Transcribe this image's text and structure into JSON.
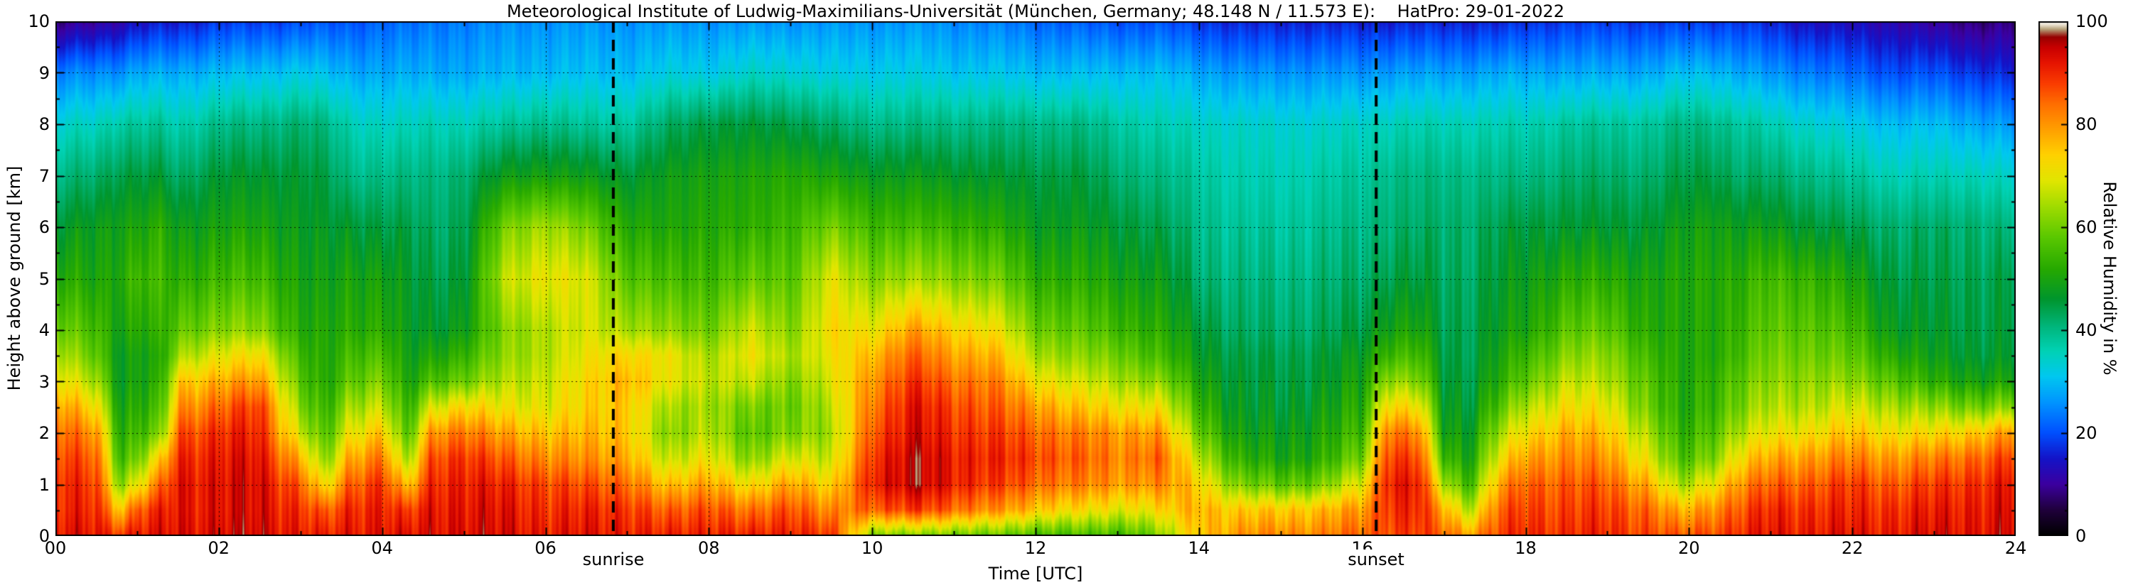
{
  "title": "Meteorological Institute of Ludwig-Maximilians-Universität (München, Germany; 48.148 N / 11.573 E):    HatPro: 29-01-2022",
  "axes": {
    "x_label": "Time [UTC]",
    "y_label": "Height above ground [km]",
    "x_ticks": [
      "00",
      "02",
      "04",
      "06",
      "08",
      "10",
      "12",
      "14",
      "16",
      "18",
      "20",
      "22",
      "24"
    ],
    "y_ticks": [
      "0",
      "1",
      "2",
      "3",
      "4",
      "5",
      "6",
      "7",
      "8",
      "9",
      "10"
    ],
    "colorbar_ticks": [
      "0",
      "20",
      "40",
      "60",
      "80",
      "100"
    ]
  },
  "chart_data": {
    "type": "heatmap",
    "title": "Meteorological Institute of Ludwig-Maximilians-Universität (München, Germany; 48.148 N / 11.573 E):    HatPro: 29-01-2022",
    "xlabel": "Time [UTC]",
    "ylabel": "Height above ground [km]",
    "xlim": [
      0,
      24
    ],
    "ylim": [
      0,
      10
    ],
    "grid": true,
    "colorbar": {
      "label": "Relative Humidity in %",
      "min": 0,
      "max": 100
    },
    "annotations": [
      {
        "label": "sunrise",
        "time_utc": 6.83
      },
      {
        "label": "sunset",
        "time_utc": 16.17
      }
    ],
    "colormap_stops": [
      [
        0,
        "#000000"
      ],
      [
        5,
        "#20003c"
      ],
      [
        10,
        "#3c00a0"
      ],
      [
        15,
        "#1414c8"
      ],
      [
        20,
        "#0050ff"
      ],
      [
        26,
        "#0096ff"
      ],
      [
        31,
        "#00c8f0"
      ],
      [
        36,
        "#00d2b4"
      ],
      [
        41,
        "#00b478"
      ],
      [
        46,
        "#00962e"
      ],
      [
        52,
        "#28aa00"
      ],
      [
        58,
        "#5ac800"
      ],
      [
        64,
        "#a0dc00"
      ],
      [
        69,
        "#e1e600"
      ],
      [
        74,
        "#ffd200"
      ],
      [
        79,
        "#ffa000"
      ],
      [
        84,
        "#ff6e00"
      ],
      [
        88,
        "#fa3c00"
      ],
      [
        92,
        "#e61400"
      ],
      [
        95,
        "#c80000"
      ],
      [
        97,
        "#960000"
      ],
      [
        98.5,
        "#b4a078"
      ],
      [
        99.3,
        "#e6dcc8"
      ],
      [
        100,
        "#ffffff"
      ]
    ],
    "heights": [
      0,
      0.5,
      1,
      1.5,
      2,
      2.5,
      3,
      3.5,
      4,
      5,
      6,
      7,
      8,
      9,
      10
    ],
    "times": [
      0,
      0.5,
      0.8,
      1,
      1.3,
      1.5,
      2,
      2.5,
      3,
      3.3,
      3.6,
      4,
      4.3,
      4.6,
      5,
      5.5,
      6,
      6.5,
      7,
      7.5,
      8,
      8.5,
      9,
      9.5,
      10,
      10.5,
      11,
      11.5,
      12,
      12.5,
      13,
      13.5,
      14,
      14.5,
      15,
      15.5,
      16,
      16.3,
      16.7,
      17,
      17.3,
      17.7,
      18,
      18.5,
      19,
      19.5,
      19.9,
      20.3,
      20.6,
      21,
      21.5,
      22,
      22.5,
      23,
      23.5,
      24
    ],
    "values_rh_percent": [
      [
        92,
        90,
        90,
        88,
        85,
        80,
        72,
        66,
        60,
        52,
        46,
        40,
        34,
        24,
        8
      ],
      [
        92,
        90,
        88,
        85,
        80,
        72,
        64,
        58,
        55,
        50,
        48,
        42,
        35,
        25,
        10
      ],
      [
        90,
        76,
        62,
        55,
        52,
        50,
        48,
        48,
        50,
        52,
        50,
        45,
        38,
        26,
        12
      ],
      [
        92,
        86,
        70,
        60,
        55,
        52,
        50,
        50,
        52,
        55,
        50,
        45,
        38,
        28,
        14
      ],
      [
        92,
        90,
        84,
        74,
        60,
        55,
        52,
        50,
        52,
        54,
        52,
        45,
        38,
        28,
        15
      ],
      [
        93,
        92,
        92,
        90,
        86,
        80,
        74,
        64,
        58,
        52,
        48,
        42,
        36,
        28,
        15
      ],
      [
        94,
        93,
        93,
        92,
        90,
        85,
        78,
        70,
        62,
        55,
        50,
        46,
        40,
        30,
        18
      ],
      [
        94,
        93,
        93,
        92,
        90,
        88,
        80,
        72,
        62,
        55,
        50,
        46,
        40,
        30,
        18
      ],
      [
        92,
        90,
        86,
        78,
        68,
        62,
        58,
        55,
        52,
        50,
        48,
        46,
        42,
        32,
        20
      ],
      [
        90,
        84,
        70,
        60,
        55,
        52,
        50,
        50,
        50,
        48,
        46,
        44,
        40,
        30,
        20
      ],
      [
        92,
        90,
        85,
        78,
        70,
        64,
        58,
        55,
        52,
        50,
        46,
        40,
        36,
        28,
        20
      ],
      [
        93,
        92,
        90,
        84,
        76,
        68,
        62,
        57,
        53,
        50,
        45,
        40,
        35,
        28,
        22
      ],
      [
        92,
        87,
        74,
        62,
        55,
        52,
        49,
        48,
        47,
        46,
        44,
        40,
        35,
        28,
        22
      ],
      [
        93,
        92,
        90,
        87,
        80,
        68,
        56,
        50,
        46,
        44,
        42,
        40,
        36,
        28,
        23
      ],
      [
        94,
        93,
        92,
        90,
        84,
        74,
        60,
        54,
        49,
        46,
        44,
        42,
        36,
        28,
        24
      ],
      [
        93,
        92,
        90,
        85,
        78,
        70,
        65,
        62,
        61,
        66,
        60,
        48,
        38,
        29,
        25
      ],
      [
        92,
        90,
        88,
        82,
        76,
        70,
        68,
        66,
        66,
        71,
        65,
        50,
        40,
        30,
        26
      ],
      [
        92,
        90,
        86,
        80,
        76,
        73,
        72,
        70,
        68,
        68,
        60,
        48,
        38,
        30,
        26
      ],
      [
        92,
        90,
        85,
        79,
        76,
        76,
        78,
        74,
        65,
        58,
        52,
        46,
        38,
        30,
        26
      ],
      [
        90,
        84,
        74,
        65,
        60,
        63,
        69,
        70,
        62,
        55,
        50,
        48,
        42,
        32,
        26
      ],
      [
        92,
        88,
        80,
        72,
        67,
        65,
        67,
        65,
        60,
        55,
        52,
        50,
        45,
        32,
        26
      ],
      [
        90,
        82,
        70,
        60,
        56,
        59,
        66,
        70,
        67,
        58,
        52,
        50,
        45,
        34,
        26
      ],
      [
        92,
        88,
        80,
        70,
        62,
        60,
        62,
        65,
        62,
        58,
        55,
        52,
        45,
        34,
        26
      ],
      [
        88,
        80,
        72,
        66,
        63,
        65,
        68,
        70,
        72,
        69,
        60,
        50,
        42,
        32,
        26
      ],
      [
        62,
        86,
        92,
        90,
        87,
        84,
        81,
        77,
        71,
        62,
        55,
        48,
        40,
        32,
        26
      ],
      [
        60,
        88,
        95,
        95,
        93,
        92,
        89,
        85,
        79,
        64,
        55,
        48,
        40,
        32,
        26
      ],
      [
        60,
        85,
        92,
        92,
        90,
        88,
        84,
        79,
        74,
        62,
        54,
        47,
        40,
        31,
        25
      ],
      [
        58,
        80,
        88,
        90,
        88,
        85,
        82,
        77,
        71,
        60,
        52,
        46,
        40,
        31,
        24
      ],
      [
        56,
        76,
        85,
        88,
        85,
        80,
        72,
        65,
        60,
        53,
        48,
        45,
        40,
        30,
        22
      ],
      [
        55,
        72,
        82,
        85,
        82,
        75,
        68,
        62,
        58,
        52,
        48,
        45,
        40,
        30,
        21
      ],
      [
        55,
        70,
        80,
        82,
        80,
        72,
        65,
        60,
        55,
        50,
        46,
        42,
        38,
        30,
        20
      ],
      [
        60,
        72,
        81,
        85,
        80,
        71,
        62,
        55,
        52,
        48,
        44,
        40,
        36,
        30,
        20
      ],
      [
        76,
        78,
        74,
        67,
        60,
        55,
        51,
        48,
        46,
        42,
        40,
        38,
        35,
        28,
        18
      ],
      [
        80,
        74,
        60,
        52,
        48,
        46,
        45,
        44,
        42,
        40,
        38,
        36,
        34,
        26,
        16
      ],
      [
        82,
        75,
        58,
        50,
        48,
        46,
        45,
        44,
        42,
        40,
        38,
        36,
        34,
        26,
        16
      ],
      [
        82,
        76,
        60,
        52,
        50,
        48,
        46,
        45,
        43,
        41,
        39,
        37,
        34,
        26,
        16
      ],
      [
        85,
        80,
        70,
        60,
        55,
        52,
        50,
        48,
        45,
        42,
        40,
        38,
        35,
        26,
        16
      ],
      [
        88,
        90,
        92,
        89,
        84,
        74,
        64,
        55,
        50,
        45,
        42,
        40,
        36,
        27,
        16
      ],
      [
        88,
        90,
        91,
        87,
        81,
        71,
        61,
        55,
        50,
        45,
        42,
        40,
        36,
        27,
        16
      ],
      [
        85,
        78,
        65,
        55,
        50,
        48,
        46,
        45,
        44,
        43,
        42,
        40,
        36,
        27,
        16
      ],
      [
        80,
        66,
        55,
        50,
        48,
        46,
        45,
        44,
        44,
        43,
        42,
        40,
        36,
        27,
        16
      ],
      [
        88,
        85,
        79,
        71,
        64,
        57,
        52,
        50,
        48,
        46,
        44,
        40,
        36,
        28,
        16
      ],
      [
        90,
        88,
        85,
        79,
        72,
        65,
        58,
        54,
        50,
        48,
        45,
        40,
        36,
        28,
        17
      ],
      [
        90,
        88,
        86,
        82,
        78,
        72,
        67,
        62,
        58,
        52,
        46,
        42,
        38,
        28,
        18
      ],
      [
        90,
        88,
        85,
        80,
        75,
        70,
        65,
        62,
        58,
        52,
        46,
        42,
        38,
        28,
        18
      ],
      [
        88,
        85,
        78,
        70,
        65,
        60,
        58,
        55,
        52,
        50,
        46,
        42,
        38,
        28,
        18
      ],
      [
        85,
        76,
        63,
        55,
        52,
        50,
        50,
        50,
        50,
        50,
        48,
        44,
        40,
        30,
        18
      ],
      [
        88,
        82,
        72,
        62,
        58,
        55,
        54,
        52,
        52,
        52,
        50,
        45,
        40,
        30,
        18
      ],
      [
        90,
        86,
        80,
        72,
        65,
        60,
        58,
        55,
        54,
        52,
        48,
        42,
        38,
        28,
        18
      ],
      [
        92,
        90,
        85,
        78,
        70,
        65,
        62,
        60,
        58,
        55,
        48,
        42,
        36,
        26,
        16
      ],
      [
        92,
        90,
        86,
        80,
        72,
        66,
        63,
        60,
        58,
        54,
        46,
        40,
        34,
        24,
        14
      ],
      [
        92,
        90,
        88,
        82,
        75,
        68,
        62,
        58,
        55,
        50,
        44,
        38,
        32,
        22,
        13
      ],
      [
        92,
        90,
        86,
        80,
        72,
        65,
        58,
        52,
        48,
        45,
        42,
        36,
        30,
        20,
        12
      ],
      [
        93,
        91,
        88,
        82,
        72,
        62,
        52,
        48,
        46,
        44,
        42,
        36,
        30,
        20,
        10
      ],
      [
        93,
        92,
        90,
        85,
        75,
        60,
        50,
        46,
        45,
        44,
        42,
        36,
        28,
        18,
        8
      ],
      [
        94,
        93,
        92,
        88,
        80,
        62,
        50,
        46,
        45,
        44,
        40,
        34,
        26,
        16,
        8
      ]
    ]
  }
}
